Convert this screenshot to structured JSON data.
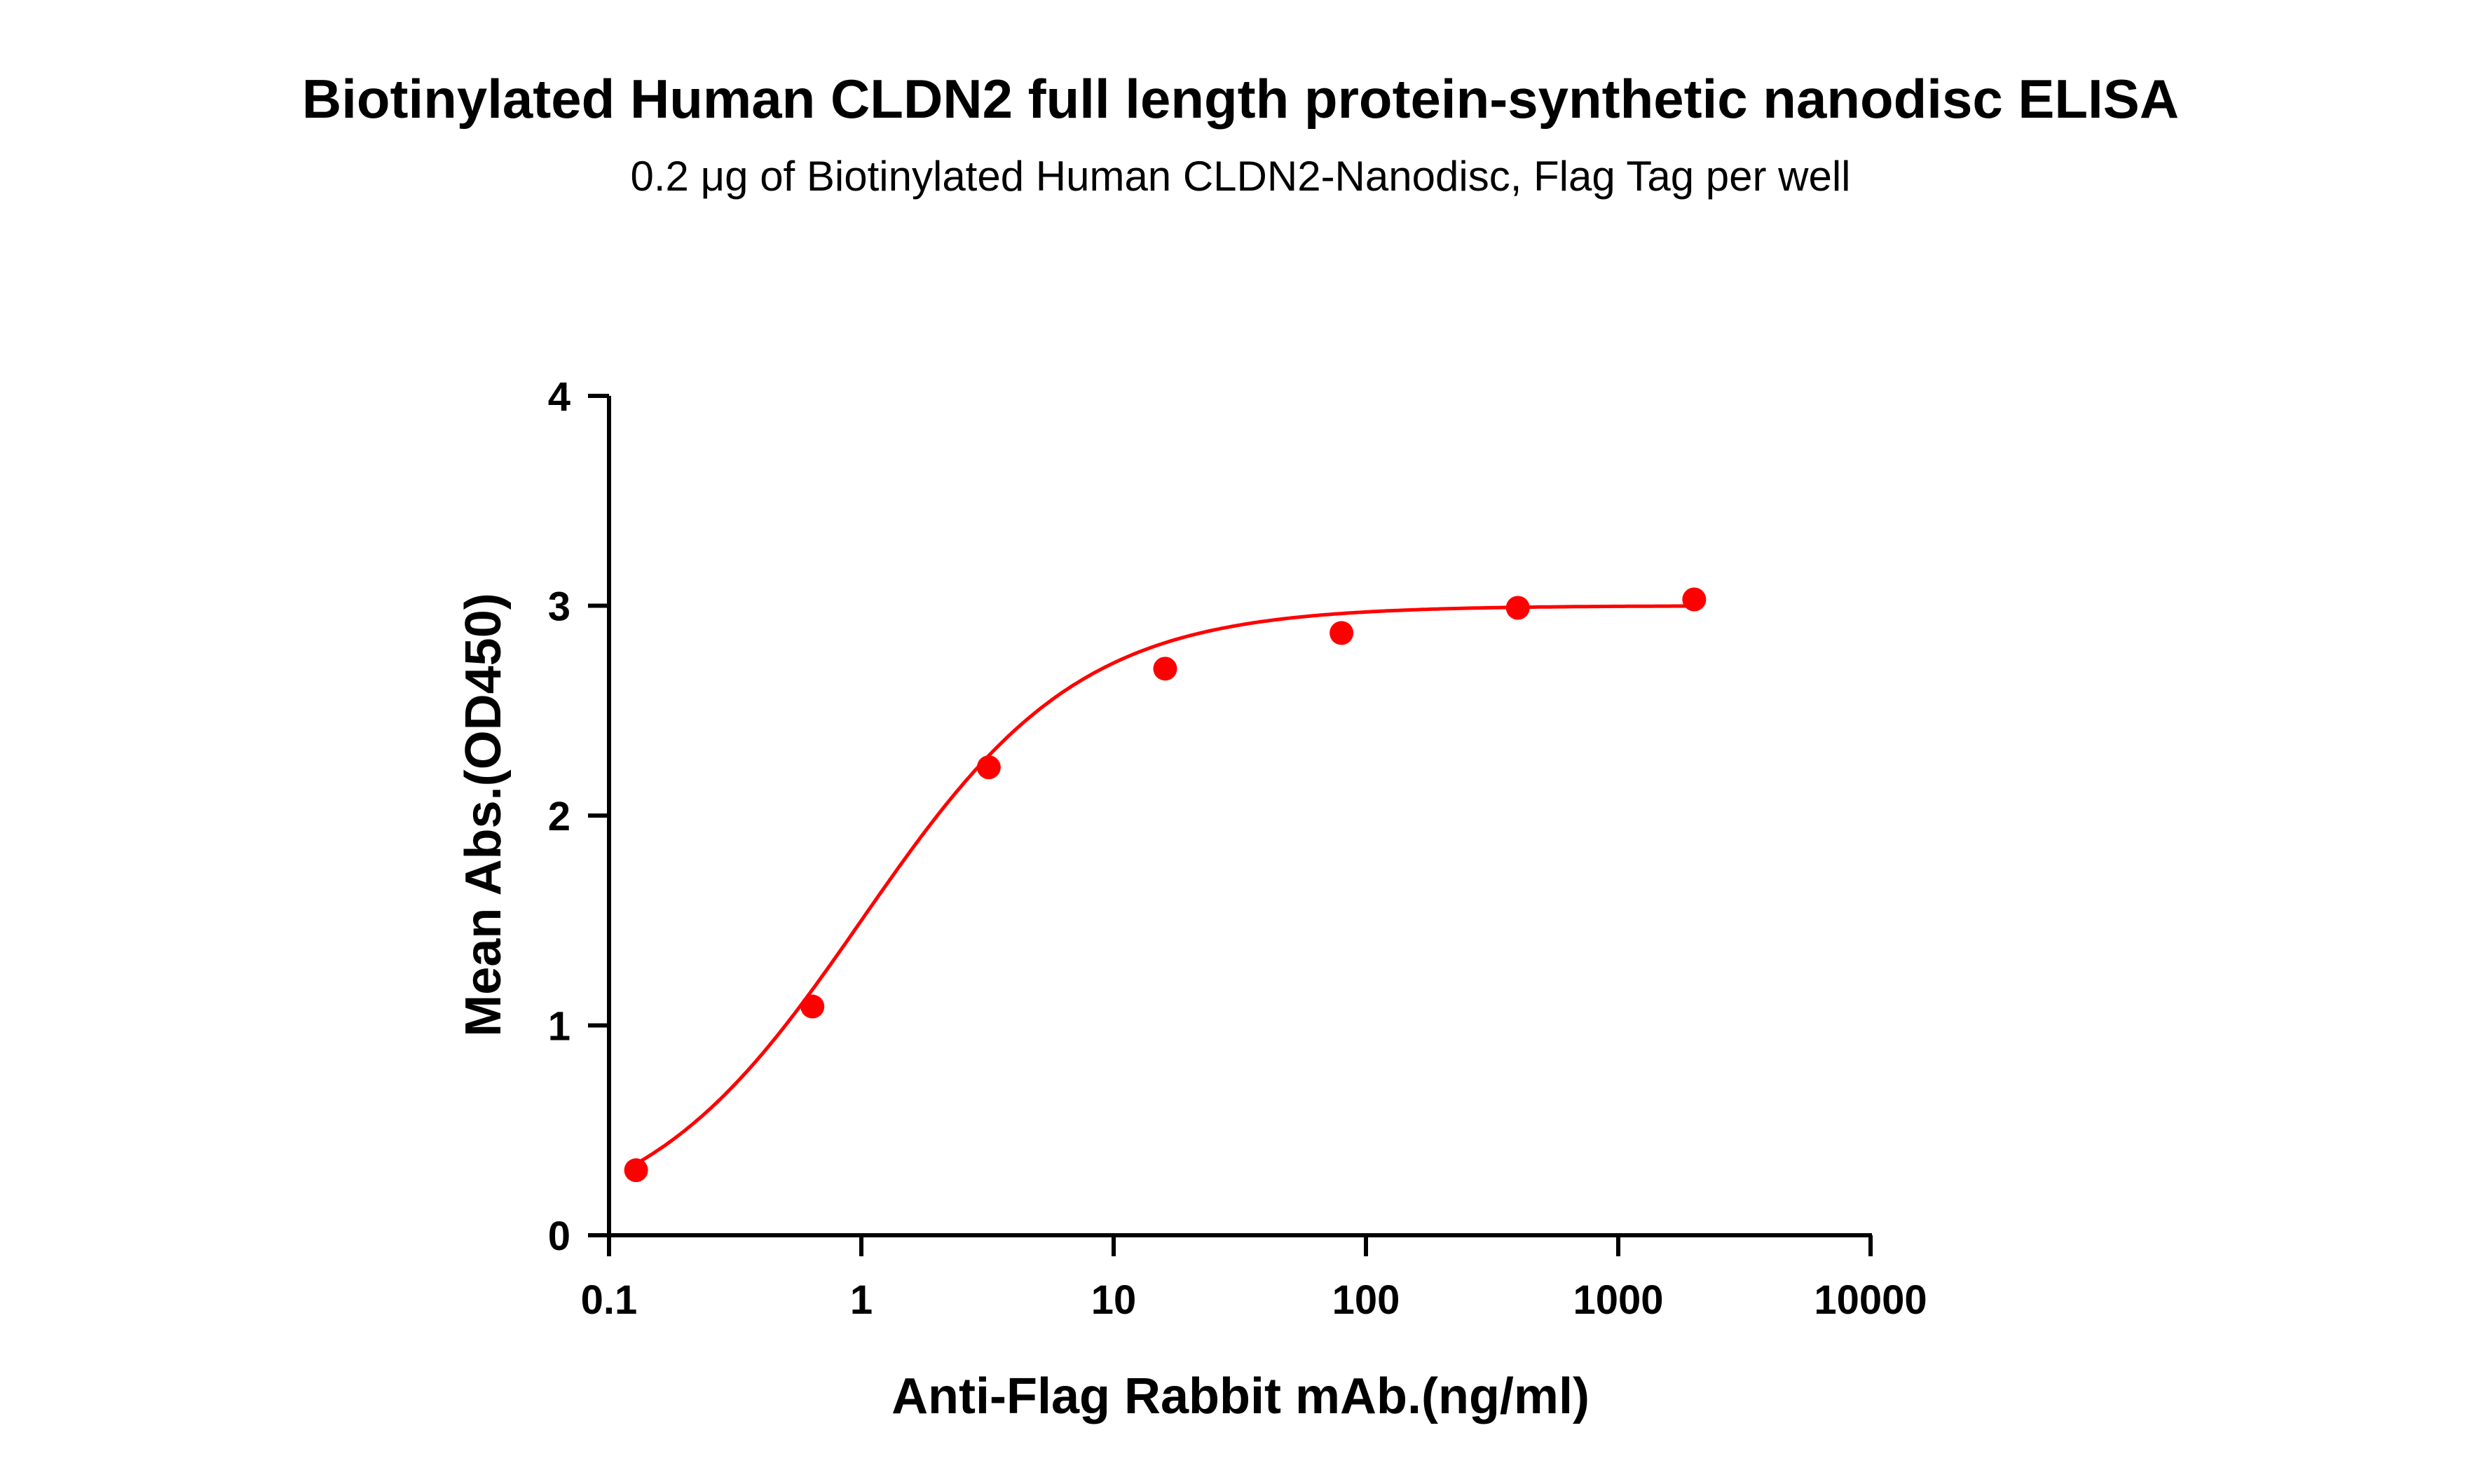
{
  "chart_data": {
    "type": "scatter",
    "title": "Biotinylated Human CLDN2 full length protein-synthetic nanodisc ELISA",
    "subtitle": "0.2 μg of Biotinylated Human CLDN2-Nanodisc, Flag Tag per well",
    "xlabel": "Anti-Flag Rabbit mAb.(ng/ml)",
    "ylabel": "Mean Abs.(OD450)",
    "xscale": "log",
    "xlim": [
      0.1,
      10000
    ],
    "ylim": [
      0,
      4
    ],
    "xticks": [
      "0.1",
      "1",
      "10",
      "100",
      "1000",
      "10000"
    ],
    "yticks": [
      "0",
      "1",
      "2",
      "3",
      "4"
    ],
    "grid": false,
    "color": "#ff0000",
    "series": [
      {
        "x": [
          0.128,
          0.64,
          3.2,
          16,
          80,
          400,
          2000
        ],
        "y": [
          0.31,
          1.09,
          2.23,
          2.7,
          2.87,
          2.99,
          3.03
        ]
      }
    ],
    "fit_curve": {
      "model": "4PL",
      "bottom": 0.0,
      "top": 3.0,
      "ec50": 1.0,
      "hill": 1.0
    }
  }
}
